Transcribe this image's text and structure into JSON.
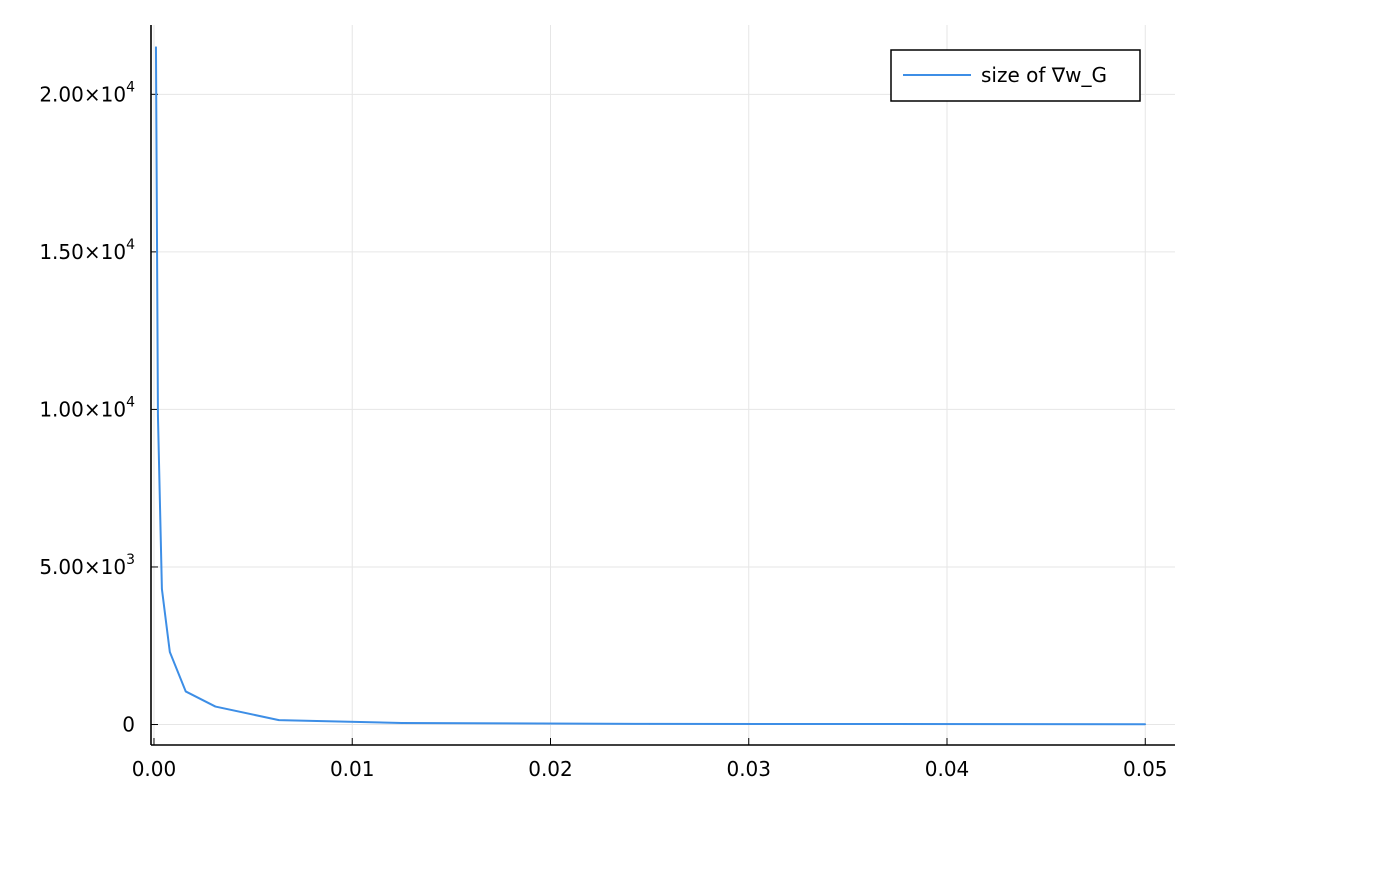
{
  "chart_data": {
    "type": "line",
    "title": "",
    "xlabel": "",
    "ylabel": "",
    "xlim": [
      -0.00015,
      0.0515
    ],
    "ylim": [
      -650,
      22200
    ],
    "grid": true,
    "legend_position": "top-right",
    "x_ticks": [
      {
        "value": 0.0,
        "label": "0.00"
      },
      {
        "value": 0.01,
        "label": "0.01"
      },
      {
        "value": 0.02,
        "label": "0.02"
      },
      {
        "value": 0.03,
        "label": "0.03"
      },
      {
        "value": 0.04,
        "label": "0.04"
      },
      {
        "value": 0.05,
        "label": "0.05"
      }
    ],
    "y_ticks": [
      {
        "value": 0,
        "mantissa": "0",
        "exponent": ""
      },
      {
        "value": 5000,
        "mantissa": "5.00×10",
        "exponent": "3"
      },
      {
        "value": 10000,
        "mantissa": "1.00×10",
        "exponent": "4"
      },
      {
        "value": 15000,
        "mantissa": "1.50×10",
        "exponent": "4"
      },
      {
        "value": 20000,
        "mantissa": "2.00×10",
        "exponent": "4"
      }
    ],
    "series": [
      {
        "name": "size of ∇w_G",
        "color": "#3d8ee6",
        "x": [
          0.0001,
          0.0002,
          0.0004,
          0.0008,
          0.0016,
          0.0031,
          0.0063,
          0.0125,
          0.025,
          0.05
        ],
        "y": [
          21500,
          9800,
          4300,
          2300,
          1050,
          570,
          140,
          50,
          20,
          10
        ]
      }
    ]
  }
}
